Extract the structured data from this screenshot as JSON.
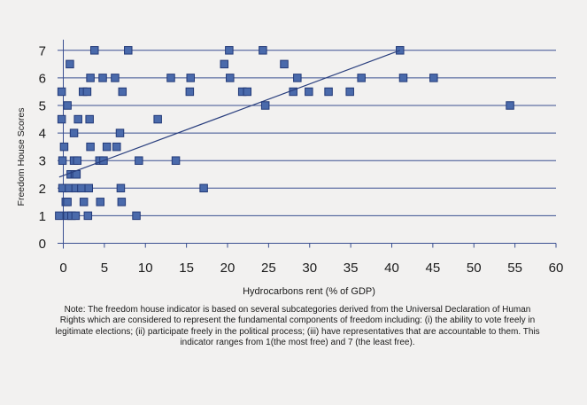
{
  "chart_data": {
    "type": "scatter",
    "xlabel": "Hydrocarbons rent (% of GDP)",
    "ylabel": "Freedom House Scores",
    "xlim": [
      0,
      60
    ],
    "ylim": [
      0,
      7
    ],
    "xticks": [
      "0",
      "5",
      "10",
      "15",
      "20",
      "25",
      "30",
      "35",
      "40",
      "45",
      "50",
      "55",
      "60"
    ],
    "yticks": [
      "0",
      "1",
      "2",
      "3",
      "4",
      "5",
      "6",
      "7"
    ],
    "grid": "horizontal",
    "trendline": {
      "x": [
        -0.5,
        41
      ],
      "y": [
        2.4,
        7.0
      ]
    },
    "marker_color": "#4a6aab",
    "marker_edge": "#233a78",
    "line_color": "#2a3f7e",
    "series": [
      {
        "points": [
          [
            -0.5,
            1.0
          ],
          [
            -0.2,
            5.5
          ],
          [
            -0.2,
            4.5
          ],
          [
            -0.1,
            3.0
          ],
          [
            -0.1,
            2.0
          ],
          [
            0.1,
            3.5
          ],
          [
            0.3,
            1.5
          ],
          [
            0.5,
            5.0
          ],
          [
            0.5,
            1.0
          ],
          [
            0.5,
            1.5
          ],
          [
            0.7,
            2.0
          ],
          [
            0.8,
            6.5
          ],
          [
            0.9,
            2.5
          ],
          [
            1.0,
            1.0
          ],
          [
            1.3,
            3.0
          ],
          [
            1.3,
            4.0
          ],
          [
            1.4,
            2.5
          ],
          [
            1.5,
            1.0
          ],
          [
            1.5,
            2.0
          ],
          [
            1.6,
            2.5
          ],
          [
            1.7,
            3.0
          ],
          [
            1.8,
            4.5
          ],
          [
            2.2,
            2.0
          ],
          [
            2.4,
            5.5
          ],
          [
            2.5,
            1.5
          ],
          [
            2.9,
            5.5
          ],
          [
            3.0,
            1.0
          ],
          [
            3.1,
            2.0
          ],
          [
            3.2,
            4.5
          ],
          [
            3.3,
            3.5
          ],
          [
            3.3,
            6.0
          ],
          [
            3.8,
            7.0
          ],
          [
            4.4,
            3.0
          ],
          [
            4.5,
            1.5
          ],
          [
            4.9,
            3.0
          ],
          [
            4.8,
            6.0
          ],
          [
            5.3,
            3.5
          ],
          [
            6.3,
            6.0
          ],
          [
            6.5,
            3.5
          ],
          [
            6.9,
            4.0
          ],
          [
            7.0,
            2.0
          ],
          [
            7.1,
            1.5
          ],
          [
            7.2,
            5.5
          ],
          [
            7.9,
            7.0
          ],
          [
            8.9,
            1.0
          ],
          [
            9.2,
            3.0
          ],
          [
            11.5,
            4.5
          ],
          [
            13.1,
            6.0
          ],
          [
            13.7,
            3.0
          ],
          [
            15.4,
            5.5
          ],
          [
            15.5,
            6.0
          ],
          [
            17.1,
            2.0
          ],
          [
            19.6,
            6.5
          ],
          [
            20.2,
            7.0
          ],
          [
            20.3,
            6.0
          ],
          [
            21.8,
            5.5
          ],
          [
            22.4,
            5.5
          ],
          [
            24.3,
            7.0
          ],
          [
            24.6,
            5.0
          ],
          [
            26.9,
            6.5
          ],
          [
            28.0,
            5.5
          ],
          [
            28.5,
            6.0
          ],
          [
            29.9,
            5.5
          ],
          [
            32.3,
            5.5
          ],
          [
            34.9,
            5.5
          ],
          [
            36.3,
            6.0
          ],
          [
            41.0,
            7.0
          ],
          [
            41.4,
            6.0
          ],
          [
            45.1,
            6.0
          ],
          [
            54.4,
            5.0
          ]
        ]
      }
    ]
  },
  "note": "Note: The freedom house indicator is based on several subcategories derived from the Universal Declaration of Human Rights which are considered to represent the fundamental components of freedom including: (i) the ability to vote freely in legitimate elections; (ii) participate freely in the political process; (iii) have representatives that are accountable to them.  This indicator ranges from 1(the most free) and 7 (the least free)."
}
